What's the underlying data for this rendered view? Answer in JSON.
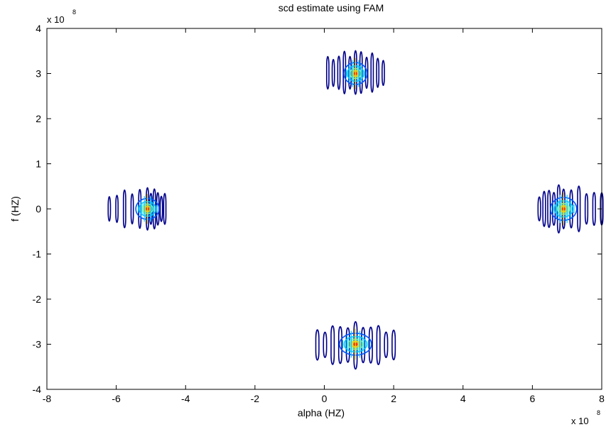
{
  "chart_data": {
    "type": "contour",
    "title": "scd estimate using FAM",
    "xlabel": "alpha (HZ)",
    "ylabel": "f (HZ)",
    "x_multiplier": {
      "base": "x 10",
      "exponent": "8"
    },
    "y_multiplier": {
      "base": "x 10",
      "exponent": "8"
    },
    "xlim": [
      -8,
      8
    ],
    "ylim": [
      -4,
      4
    ],
    "x_ticks": [
      -8,
      -6,
      -4,
      -2,
      0,
      2,
      4,
      6,
      8
    ],
    "y_ticks": [
      -4,
      -3,
      -2,
      -1,
      0,
      1,
      2,
      3,
      4
    ],
    "x_tick_labels": [
      "-8",
      "-6",
      "-4",
      "-2",
      "0",
      "2",
      "4",
      "6",
      "8"
    ],
    "y_tick_labels": [
      "-4",
      "-3",
      "-2",
      "-1",
      "0",
      "1",
      "2",
      "3",
      "4"
    ],
    "grid": false,
    "legend": "none",
    "colormap": [
      "#00008b",
      "#0055ff",
      "#00c8ff",
      "#7fffa0",
      "#ffd000",
      "#ff3000"
    ],
    "peaks": [
      {
        "alpha": 0.9,
        "f": 3.0,
        "alpha_spread": [
          0.1,
          1.7
        ],
        "f_spread": [
          2.5,
          3.55
        ]
      },
      {
        "alpha": 0.9,
        "f": -3.0,
        "alpha_spread": [
          -0.2,
          2.0
        ],
        "f_spread": [
          -3.55,
          -2.5
        ]
      },
      {
        "alpha": -5.1,
        "f": 0.0,
        "alpha_spread": [
          -6.2,
          -4.6
        ],
        "f_spread": [
          -0.5,
          0.5
        ]
      },
      {
        "alpha": 6.9,
        "f": 0.0,
        "alpha_spread": [
          6.2,
          8.0
        ],
        "f_spread": [
          -0.55,
          0.55
        ]
      }
    ]
  }
}
